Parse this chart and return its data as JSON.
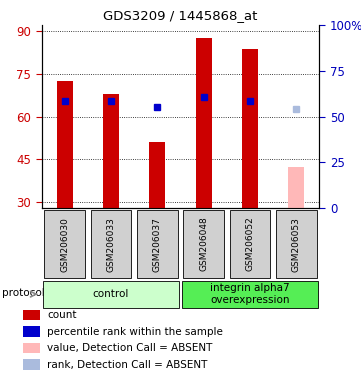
{
  "title": "GDS3209 / 1445868_at",
  "samples": [
    "GSM206030",
    "GSM206033",
    "GSM206037",
    "GSM206048",
    "GSM206052",
    "GSM206053"
  ],
  "bar_values": [
    72.5,
    68.0,
    51.0,
    87.5,
    83.5,
    42.5
  ],
  "bar_colors": [
    "#cc0000",
    "#cc0000",
    "#cc0000",
    "#cc0000",
    "#cc0000",
    "#ffb8b8"
  ],
  "rank_values": [
    65.5,
    65.5,
    63.5,
    67.0,
    65.5,
    62.5
  ],
  "rank_colors": [
    "#0000cc",
    "#0000cc",
    "#0000cc",
    "#0000cc",
    "#0000cc",
    "#aabbdd"
  ],
  "rank_absent": [
    false,
    false,
    false,
    false,
    false,
    true
  ],
  "bar_absent": [
    false,
    false,
    false,
    false,
    false,
    true
  ],
  "ylim_left": [
    28,
    92
  ],
  "yticks_left": [
    30,
    45,
    60,
    75,
    90
  ],
  "ylim_right": [
    0,
    100
  ],
  "yticks_right": [
    0,
    25,
    50,
    75,
    100
  ],
  "groups": [
    {
      "label": "control",
      "samples": [
        0,
        1,
        2
      ],
      "color": "#ccffcc"
    },
    {
      "label": "integrin alpha7\noverexpression",
      "samples": [
        3,
        4,
        5
      ],
      "color": "#55ee55"
    }
  ],
  "protocol_label": "protocol",
  "legend_items": [
    {
      "color": "#cc0000",
      "label": "count"
    },
    {
      "color": "#0000cc",
      "label": "percentile rank within the sample"
    },
    {
      "color": "#ffb8b8",
      "label": "value, Detection Call = ABSENT"
    },
    {
      "color": "#aabbdd",
      "label": "rank, Detection Call = ABSENT"
    }
  ],
  "bg_color": "#ffffff",
  "plot_bg": "#ffffff",
  "bar_width": 0.35,
  "sample_box_color": "#d0d0d0",
  "left_tick_color": "#cc0000",
  "right_tick_color": "#0000bb"
}
